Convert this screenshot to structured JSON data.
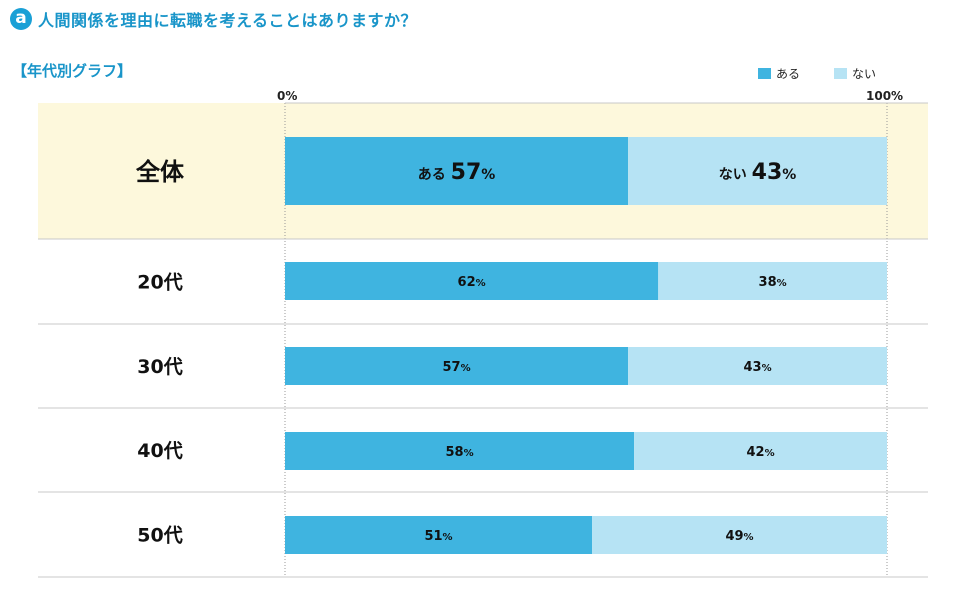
{
  "header": {
    "badge": "a",
    "title": "人間関係を理由に転職を考えることはありますか？",
    "subtitle": "【年代別グラフ】"
  },
  "legend": [
    {
      "label": "ある",
      "color": "#3fb4e0"
    },
    {
      "label": "ない",
      "color": "#b6e3f4"
    }
  ],
  "axis": {
    "min_label": "0%",
    "max_label": "100%"
  },
  "chart_data": {
    "type": "bar",
    "orientation": "horizontal",
    "stacked": true,
    "xlim": [
      0,
      100
    ],
    "categories": [
      "全体",
      "20代",
      "30代",
      "40代",
      "50代"
    ],
    "series": [
      {
        "name": "ある",
        "values": [
          57,
          62,
          57,
          58,
          51
        ],
        "color": "#3fb4e0"
      },
      {
        "name": "ない",
        "values": [
          43,
          38,
          43,
          42,
          49
        ],
        "color": "#b6e3f4"
      }
    ],
    "highlight_row_color": "#fdf8dc"
  }
}
